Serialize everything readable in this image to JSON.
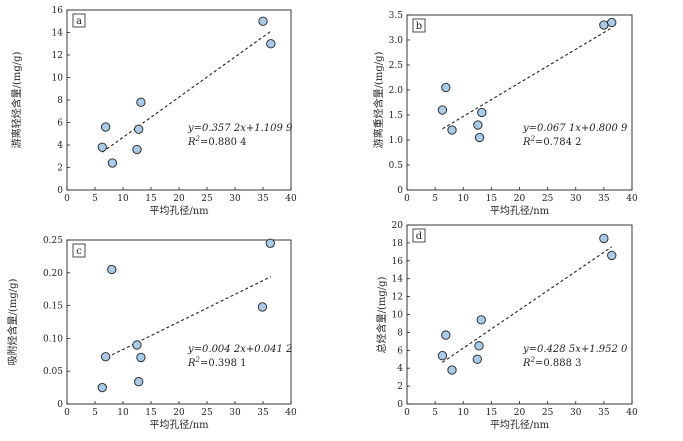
{
  "chart_data": [
    {
      "type": "scatter",
      "panel": "a",
      "xlabel": "平均孔径/nm",
      "ylabel": "游离轻烃含量/(mg/g)",
      "xlim": [
        0,
        40
      ],
      "ylim": [
        0,
        16
      ],
      "xticks": [
        0,
        5,
        10,
        15,
        20,
        25,
        30,
        35,
        40
      ],
      "yticks": [
        0,
        2,
        4,
        6,
        8,
        10,
        12,
        14,
        16
      ],
      "points": [
        {
          "x": 6.3,
          "y": 3.8
        },
        {
          "x": 6.9,
          "y": 5.6
        },
        {
          "x": 8.1,
          "y": 2.4
        },
        {
          "x": 12.5,
          "y": 3.6
        },
        {
          "x": 12.8,
          "y": 5.4
        },
        {
          "x": 13.2,
          "y": 7.8
        },
        {
          "x": 35.0,
          "y": 15.0
        },
        {
          "x": 36.4,
          "y": 13.0
        }
      ],
      "fit": {
        "slope": 0.3572,
        "intercept": 1.1099,
        "x_range": [
          6.3,
          36.4
        ]
      },
      "equation": "y=0.357 2x+1.109 9",
      "r2_label": "R",
      "r2_value": "=0.880 4"
    },
    {
      "type": "scatter",
      "panel": "b",
      "xlabel": "平均孔径/nm",
      "ylabel": "游离重烃含量/(mg/g)",
      "xlim": [
        0,
        40
      ],
      "ylim": [
        0,
        3.5
      ],
      "xticks": [
        0,
        5,
        10,
        15,
        20,
        25,
        30,
        35,
        40
      ],
      "yticks": [
        0,
        0.5,
        1.0,
        1.5,
        2.0,
        2.5,
        3.0,
        3.5
      ],
      "ytick_labels": [
        "0",
        "0.5",
        "1.0",
        "1.5",
        "2.0",
        "2.5",
        "3.0",
        "3.5"
      ],
      "points": [
        {
          "x": 6.3,
          "y": 1.6
        },
        {
          "x": 6.9,
          "y": 2.05
        },
        {
          "x": 8.0,
          "y": 1.2
        },
        {
          "x": 12.6,
          "y": 1.3
        },
        {
          "x": 12.9,
          "y": 1.05
        },
        {
          "x": 13.3,
          "y": 1.55
        },
        {
          "x": 35.0,
          "y": 3.3
        },
        {
          "x": 36.4,
          "y": 3.35
        }
      ],
      "fit": {
        "slope": 0.0671,
        "intercept": 0.8009,
        "x_range": [
          6.3,
          36.4
        ]
      },
      "equation": "y=0.067 1x+0.800 9",
      "r2_label": "R",
      "r2_value": "=0.784 2"
    },
    {
      "type": "scatter",
      "panel": "c",
      "xlabel": "平均孔径/nm",
      "ylabel": "吸附烃含量/(mg/g)",
      "xlim": [
        0,
        40
      ],
      "ylim": [
        0,
        0.25
      ],
      "xticks": [
        0,
        5,
        10,
        15,
        20,
        25,
        30,
        35,
        40
      ],
      "yticks": [
        0,
        0.05,
        0.1,
        0.15,
        0.2,
        0.25
      ],
      "ytick_labels": [
        "0",
        "0.05",
        "0.10",
        "0.15",
        "0.20",
        "0.25"
      ],
      "points": [
        {
          "x": 6.3,
          "y": 0.025
        },
        {
          "x": 6.9,
          "y": 0.072
        },
        {
          "x": 8.0,
          "y": 0.205
        },
        {
          "x": 12.5,
          "y": 0.09
        },
        {
          "x": 12.8,
          "y": 0.034
        },
        {
          "x": 13.2,
          "y": 0.071
        },
        {
          "x": 34.9,
          "y": 0.148
        },
        {
          "x": 36.3,
          "y": 0.245
        }
      ],
      "fit": {
        "slope": 0.0042,
        "intercept": 0.0412,
        "x_range": [
          6.3,
          36.4
        ]
      },
      "equation": "y=0.004 2x+0.041 2",
      "r2_label": "R",
      "r2_value": "=0.398 1"
    },
    {
      "type": "scatter",
      "panel": "d",
      "xlabel": "平均孔径/nm",
      "ylabel": "总烃含量/(mg/g)",
      "xlim": [
        0,
        40
      ],
      "ylim": [
        0,
        20
      ],
      "xticks": [
        0,
        5,
        10,
        15,
        20,
        25,
        30,
        35,
        40
      ],
      "yticks": [
        0,
        2,
        4,
        6,
        8,
        10,
        12,
        14,
        16,
        18,
        20
      ],
      "points": [
        {
          "x": 6.3,
          "y": 5.4
        },
        {
          "x": 6.9,
          "y": 7.7
        },
        {
          "x": 8.0,
          "y": 3.8
        },
        {
          "x": 12.5,
          "y": 5.0
        },
        {
          "x": 12.8,
          "y": 6.5
        },
        {
          "x": 13.2,
          "y": 9.4
        },
        {
          "x": 35.0,
          "y": 18.5
        },
        {
          "x": 36.4,
          "y": 16.6
        }
      ],
      "fit": {
        "slope": 0.4285,
        "intercept": 1.952,
        "x_range": [
          6.3,
          36.4
        ]
      },
      "equation": "y=0.428 5x+1.952 0",
      "r2_label": "R",
      "r2_value": "=0.888 3"
    }
  ],
  "colors": {
    "marker_fill": "#a9cbe8",
    "marker_stroke": "#231f20",
    "axis": "#231f20",
    "fit_line": "#231f20"
  }
}
